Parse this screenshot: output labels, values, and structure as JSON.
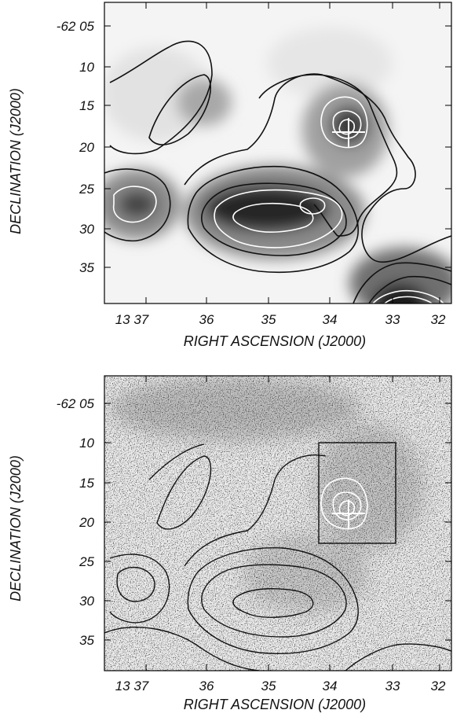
{
  "panels": [
    {
      "ra_ticks": [
        "13 37",
        "36",
        "35",
        "34",
        "33",
        "32"
      ],
      "dec_ticks": [
        "-62 05",
        "10",
        "15",
        "20",
        "25",
        "30",
        "35"
      ],
      "xlabel": "RIGHT ASCENSION (J2000)",
      "ylabel": "DECLINATION (J2000)"
    },
    {
      "ra_ticks": [
        "13 37",
        "36",
        "35",
        "34",
        "33",
        "32"
      ],
      "dec_ticks": [
        "-62 05",
        "10",
        "15",
        "20",
        "25",
        "30",
        "35"
      ],
      "xlabel": "RIGHT ASCENSION (J2000)",
      "ylabel": "DECLINATION (J2000)"
    }
  ]
}
